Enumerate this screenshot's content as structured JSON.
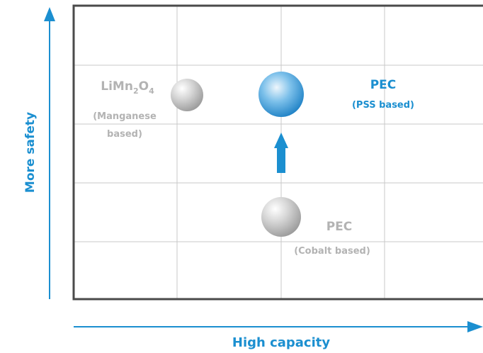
{
  "axes": {
    "x_label": "High capacity",
    "y_label": "More safety",
    "axis_color": "#1b8fd0"
  },
  "points": {
    "manganese": {
      "name_base": "LiMn",
      "sub1": "2",
      "name_mid": "O",
      "sub2": "4",
      "detail_line1": "(Manganese",
      "detail_line2": "based)",
      "color": "#b3b3b3"
    },
    "pss": {
      "name": "PEC",
      "detail": "(PSS based)",
      "color": "#1b8fd0"
    },
    "cobalt": {
      "name": "PEC",
      "detail": "(Cobalt based)",
      "color": "#b3b3b3"
    }
  },
  "colors": {
    "frame": "#4a4a4a",
    "grid": "#c8c8c8",
    "accent": "#1b8fd0",
    "grey_text": "#b3b3b3"
  }
}
